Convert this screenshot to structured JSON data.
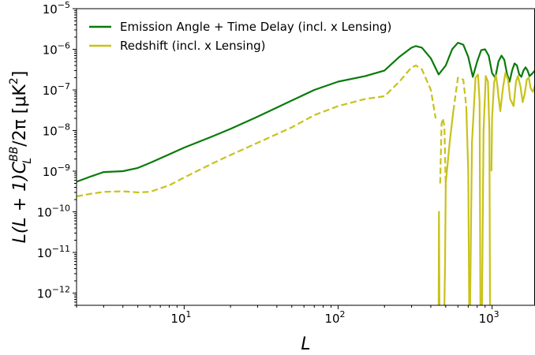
{
  "chart_data": {
    "type": "line",
    "title": "",
    "xlabel": "L",
    "ylabel": "L(L+1)C_L^{BB}/2π [μK²]",
    "ylabel_parts": {
      "main1": "L(L + 1)C",
      "sup": "BB",
      "sub": "L",
      "main2": "/2π [μK",
      "pow": "2",
      "close": "]"
    },
    "x_scale": "log",
    "y_scale": "log",
    "xlim": [
      2,
      1900
    ],
    "ylim": [
      5e-13,
      1e-05
    ],
    "grid": false,
    "legend_position": "upper-left",
    "x_ticks": [
      {
        "value": 10,
        "base": "10",
        "exp": "1"
      },
      {
        "value": 100,
        "base": "10",
        "exp": "2"
      },
      {
        "value": 1000,
        "base": "10",
        "exp": "3"
      }
    ],
    "y_ticks": [
      {
        "value": 1e-05,
        "base": "10",
        "exp": "−5"
      },
      {
        "value": 1e-06,
        "base": "10",
        "exp": "−6"
      },
      {
        "value": 1e-07,
        "base": "10",
        "exp": "−7"
      },
      {
        "value": 1e-08,
        "base": "10",
        "exp": "−8"
      },
      {
        "value": 1e-09,
        "base": "10",
        "exp": "−9"
      },
      {
        "value": 1e-10,
        "base": "10",
        "exp": "−10"
      },
      {
        "value": 1e-11,
        "base": "10",
        "exp": "−11"
      },
      {
        "value": 1e-12,
        "base": "10",
        "exp": "−12"
      }
    ],
    "series": [
      {
        "name": "Emission Angle + Time Delay (incl. x Lensing)",
        "color": "#0a7a0a",
        "style": "solid",
        "x": [
          2,
          2.5,
          3,
          4,
          5,
          6,
          8,
          10,
          15,
          20,
          30,
          50,
          70,
          100,
          150,
          200,
          250,
          300,
          320,
          350,
          400,
          450,
          500,
          550,
          600,
          650,
          700,
          750,
          800,
          850,
          900,
          950,
          1000,
          1050,
          1100,
          1150,
          1200,
          1250,
          1300,
          1350,
          1400,
          1450,
          1500,
          1550,
          1600,
          1650,
          1700,
          1750,
          1800,
          1900
        ],
        "y": [
          5.5e-10,
          7.5e-10,
          9.5e-10,
          1e-09,
          1.2e-09,
          1.6e-09,
          2.6e-09,
          3.8e-09,
          7e-09,
          1.1e-08,
          2.2e-08,
          5.5e-08,
          1e-07,
          1.6e-07,
          2.2e-07,
          3e-07,
          6.5e-07,
          1.1e-06,
          1.2e-06,
          1.1e-06,
          6e-07,
          2.4e-07,
          4e-07,
          1e-06,
          1.45e-06,
          1.3e-06,
          6.5e-07,
          2.1e-07,
          5e-07,
          9.5e-07,
          1e-06,
          7e-07,
          2.6e-07,
          2e-07,
          5e-07,
          7e-07,
          5.5e-07,
          2.5e-07,
          1.6e-07,
          3e-07,
          4.5e-07,
          4e-07,
          2.4e-07,
          2.1e-07,
          3e-07,
          3.6e-07,
          3e-07,
          2.2e-07,
          2.4e-07,
          3e-07
        ]
      },
      {
        "name": "Redshift (incl. x Lensing)",
        "color": "#c8c21a",
        "style": "mixed",
        "segments": [
          {
            "style": "dashed",
            "x": [
              2,
              2.5,
              3,
              4,
              5,
              6,
              8,
              10,
              15,
              20,
              30,
              50,
              70,
              100,
              150,
              200,
              250,
              300,
              320,
              350,
              400,
              430
            ],
            "y": [
              2.4e-10,
              2.8e-10,
              3.1e-10,
              3.2e-10,
              3e-10,
              3.1e-10,
              4.5e-10,
              7e-10,
              1.5e-09,
              2.5e-09,
              5e-09,
              1.2e-08,
              2.4e-08,
              4e-08,
              6e-08,
              7e-08,
              1.6e-07,
              3.6e-07,
              4e-07,
              3.2e-07,
              1e-07,
              2e-08
            ]
          },
          {
            "style": "dashed",
            "x": [
              460,
              470,
              480,
              490,
              500
            ],
            "y": [
              5e-10,
              1.5e-08,
              2e-08,
              1.2e-08,
              4e-10
            ]
          },
          {
            "style": "dashed",
            "x": [
              560,
              600,
              650,
              680
            ],
            "y": [
              3e-08,
              2e-07,
              1.8e-07,
              4e-08
            ]
          },
          {
            "style": "solid",
            "x": [
              450,
              452,
              455
            ],
            "y": [
              5e-13,
              1e-10,
              5e-13
            ]
          },
          {
            "style": "solid",
            "x": [
              490,
              495,
              500,
              530,
              560
            ],
            "y": [
              5e-13,
              5e-12,
              5e-10,
              5e-09,
              3e-08
            ]
          },
          {
            "style": "solid",
            "x": [
              680,
              700,
              710
            ],
            "y": [
              4e-08,
              1e-09,
              5e-13
            ]
          },
          {
            "style": "solid",
            "x": [
              720,
              740,
              780,
              810,
              830,
              840
            ],
            "y": [
              5e-13,
              5e-09,
              2e-07,
              2.4e-07,
              5e-08,
              5e-13
            ]
          },
          {
            "style": "solid",
            "x": [
              860,
              880,
              910,
              940,
              960,
              970
            ],
            "y": [
              5e-13,
              1e-08,
              2.2e-07,
              1.6e-07,
              1e-08,
              5e-13
            ]
          },
          {
            "style": "solid",
            "x": [
              990,
              1000,
              1030,
              1060,
              1080,
              1100,
              1130,
              1180,
              1220,
              1270,
              1310,
              1380,
              1430,
              1470,
              1530,
              1580,
              1630,
              1680,
              1730,
              1780,
              1840,
              1900
            ],
            "y": [
              1e-09,
              2e-08,
              1.5e-07,
              2.3e-07,
              1.4e-07,
              7e-08,
              3e-08,
              1.2e-07,
              2.6e-07,
              1.8e-07,
              6e-08,
              4e-08,
              1.6e-07,
              2.2e-07,
              1.2e-07,
              5e-08,
              8e-08,
              1.8e-07,
              2e-07,
              1.1e-07,
              9e-08,
              1.3e-07
            ]
          }
        ]
      }
    ]
  }
}
